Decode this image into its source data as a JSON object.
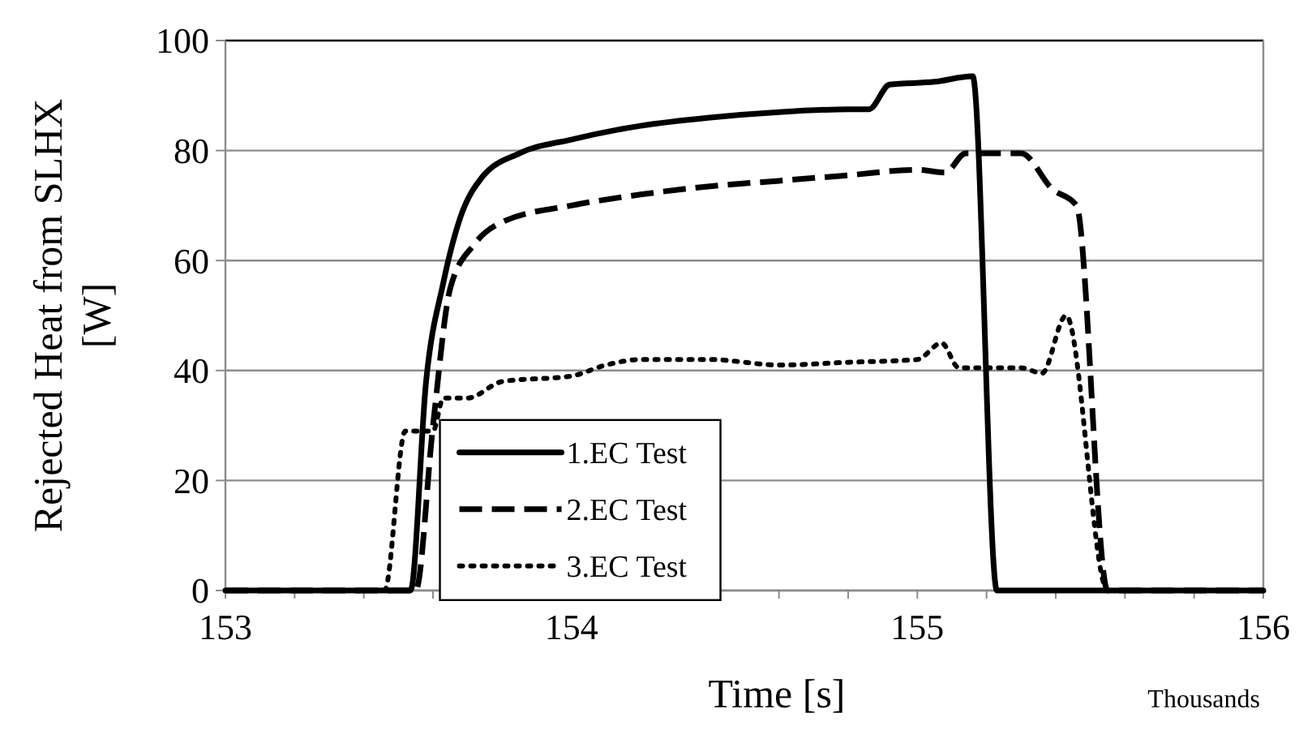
{
  "chart_data": {
    "type": "line",
    "xlabel": "Time [s]",
    "ylabel": "Rejected Heat from SLHX [W]",
    "annotations": [
      "Thousands"
    ],
    "xlim": [
      153,
      156
    ],
    "xticks": [
      153,
      {
        "value": 153.2,
        "label": null
      },
      {
        "value": 153.4,
        "label": null
      },
      {
        "value": 153.6,
        "label": null
      },
      {
        "value": 153.8,
        "label": null
      },
      154,
      {
        "value": 154.2,
        "label": null
      },
      {
        "value": 154.4,
        "label": null
      },
      {
        "value": 154.6,
        "label": null
      },
      {
        "value": 154.8,
        "label": null
      },
      155,
      {
        "value": 155.2,
        "label": null
      },
      {
        "value": 155.4,
        "label": null
      },
      {
        "value": 155.6,
        "label": null
      },
      {
        "value": 155.8,
        "label": null
      },
      156
    ],
    "ylim": [
      0,
      100
    ],
    "yticks": [
      0,
      20,
      40,
      60,
      80,
      100
    ],
    "grid": "y",
    "legend": "bottom",
    "series": [
      {
        "name": "1.EC Test",
        "color": "#000000",
        "line_style": "solid",
        "x": [
          153,
          153.535,
          153.58,
          153.63,
          153.68,
          153.74,
          153.85,
          154,
          154.2,
          154.4,
          154.6,
          154.8,
          154.86,
          154.92,
          155.05,
          155.16,
          155.23,
          156
        ],
        "values": [
          0,
          0,
          38,
          56,
          68,
          75,
          79.5,
          82,
          84.5,
          86,
          87,
          87.5,
          87.5,
          92,
          92.5,
          93.5,
          0,
          0
        ]
      },
      {
        "name": "2.EC Test",
        "color": "#000000",
        "line_style": "dashed",
        "x": [
          153,
          153.55,
          153.6,
          153.65,
          153.72,
          153.8,
          154,
          154.2,
          154.4,
          154.6,
          154.8,
          155,
          155.08,
          155.14,
          155.3,
          155.39,
          155.46,
          155.55,
          156
        ],
        "values": [
          0,
          0,
          30,
          55,
          63,
          67,
          70,
          72,
          73.5,
          74.5,
          75.5,
          76.5,
          76,
          79.5,
          79.5,
          73,
          70,
          0,
          0
        ]
      },
      {
        "name": "3.EC Test",
        "color": "#000000",
        "line_style": "dotted",
        "x": [
          153,
          153.46,
          153.52,
          153.6,
          153.63,
          153.7,
          153.8,
          154,
          154.1,
          154.2,
          154.4,
          154.6,
          154.8,
          155,
          155.07,
          155.12,
          155.3,
          155.36,
          155.43,
          155.55,
          156
        ],
        "values": [
          0,
          0,
          29,
          29,
          35,
          35,
          38,
          39,
          41,
          42,
          42,
          41,
          41.5,
          42,
          45,
          40.5,
          40.5,
          39.5,
          50,
          0,
          0
        ]
      }
    ]
  }
}
